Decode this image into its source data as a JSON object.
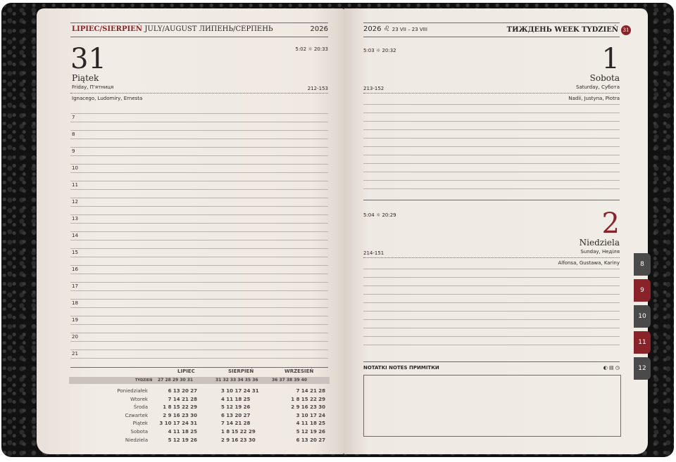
{
  "left": {
    "header_month": "LIPIEC/SIERPIEŃ",
    "header_rest": "JULY/AUGUST ЛИПЕНЬ/СЕРПЕНЬ",
    "year": "2026",
    "day_number": "31",
    "day_name": "Piątek",
    "day_sub": "Friday, П'ятниця",
    "sun": "5:02 ☼ 20:33",
    "day_count": "212-153",
    "names": "Ignacego, Ludomiry, Ernesta",
    "hours": [
      "7",
      "8",
      "9",
      "10",
      "11",
      "12",
      "13",
      "14",
      "15",
      "16",
      "17",
      "18",
      "19",
      "20",
      "21"
    ]
  },
  "right": {
    "year": "2026",
    "zodiac": "23 VII – 23 VIII",
    "zodiac_icon": "lion-icon",
    "week_label": "ТИЖДЕНЬ WEEK TYDZIEŃ",
    "week_number": "31",
    "days": [
      {
        "number": "1",
        "name": "Sobota",
        "sub": "Saturday, Субота",
        "sun": "5:03 ☼ 20:32",
        "count": "213-152",
        "names": "Nadii, Justyna, Piotra"
      },
      {
        "number": "2",
        "name": "Niedziela",
        "sub": "Sunday, Неділя",
        "sun": "5:04 ☼ 20:29",
        "count": "214-151",
        "names": "Alfonsa, Gustawa, Kariny"
      }
    ],
    "notes_label": "NOTATKI NOTES ПРИМІТКИ"
  },
  "calendar": {
    "months": [
      "LIPIEC",
      "SIERPIEŃ",
      "WRZESIEŃ"
    ],
    "week_label": "TYDZIEŃ",
    "weeks": [
      "27 28 29 30 31",
      "31 32 33 34 35 36",
      "36 37 38 39 40"
    ],
    "days": [
      "Poniedziałek",
      "Wtorek",
      "Środa",
      "Czwartek",
      "Piątek",
      "Sobota",
      "Niedziela"
    ],
    "july": [
      "6 13 20 27",
      "7 14 21 28",
      "1 8 15 22 29",
      "2 9 16 23 30",
      "3 10 17 24 31",
      "4 11 18 25",
      "5 12 19 26"
    ],
    "august": [
      "3 10 17 24 31",
      "4 11 18 25",
      "5 12 19 26",
      "6 13 20 27",
      "7 14 21 28",
      "1 8 15 22 29",
      "2 9 16 23 30"
    ],
    "september": [
      "7 14 21 28",
      "1 8 15 22 29",
      "2 9 16 23 30",
      "3 10 17 24",
      "4 11 18 25",
      "5 12 19 26",
      "6 13 20 27"
    ]
  },
  "tabs": [
    "8",
    "9",
    "10",
    "11",
    "12"
  ],
  "colors": {
    "accent": "#8a2329",
    "paper": "#efe9e3",
    "cover": "#111111"
  }
}
